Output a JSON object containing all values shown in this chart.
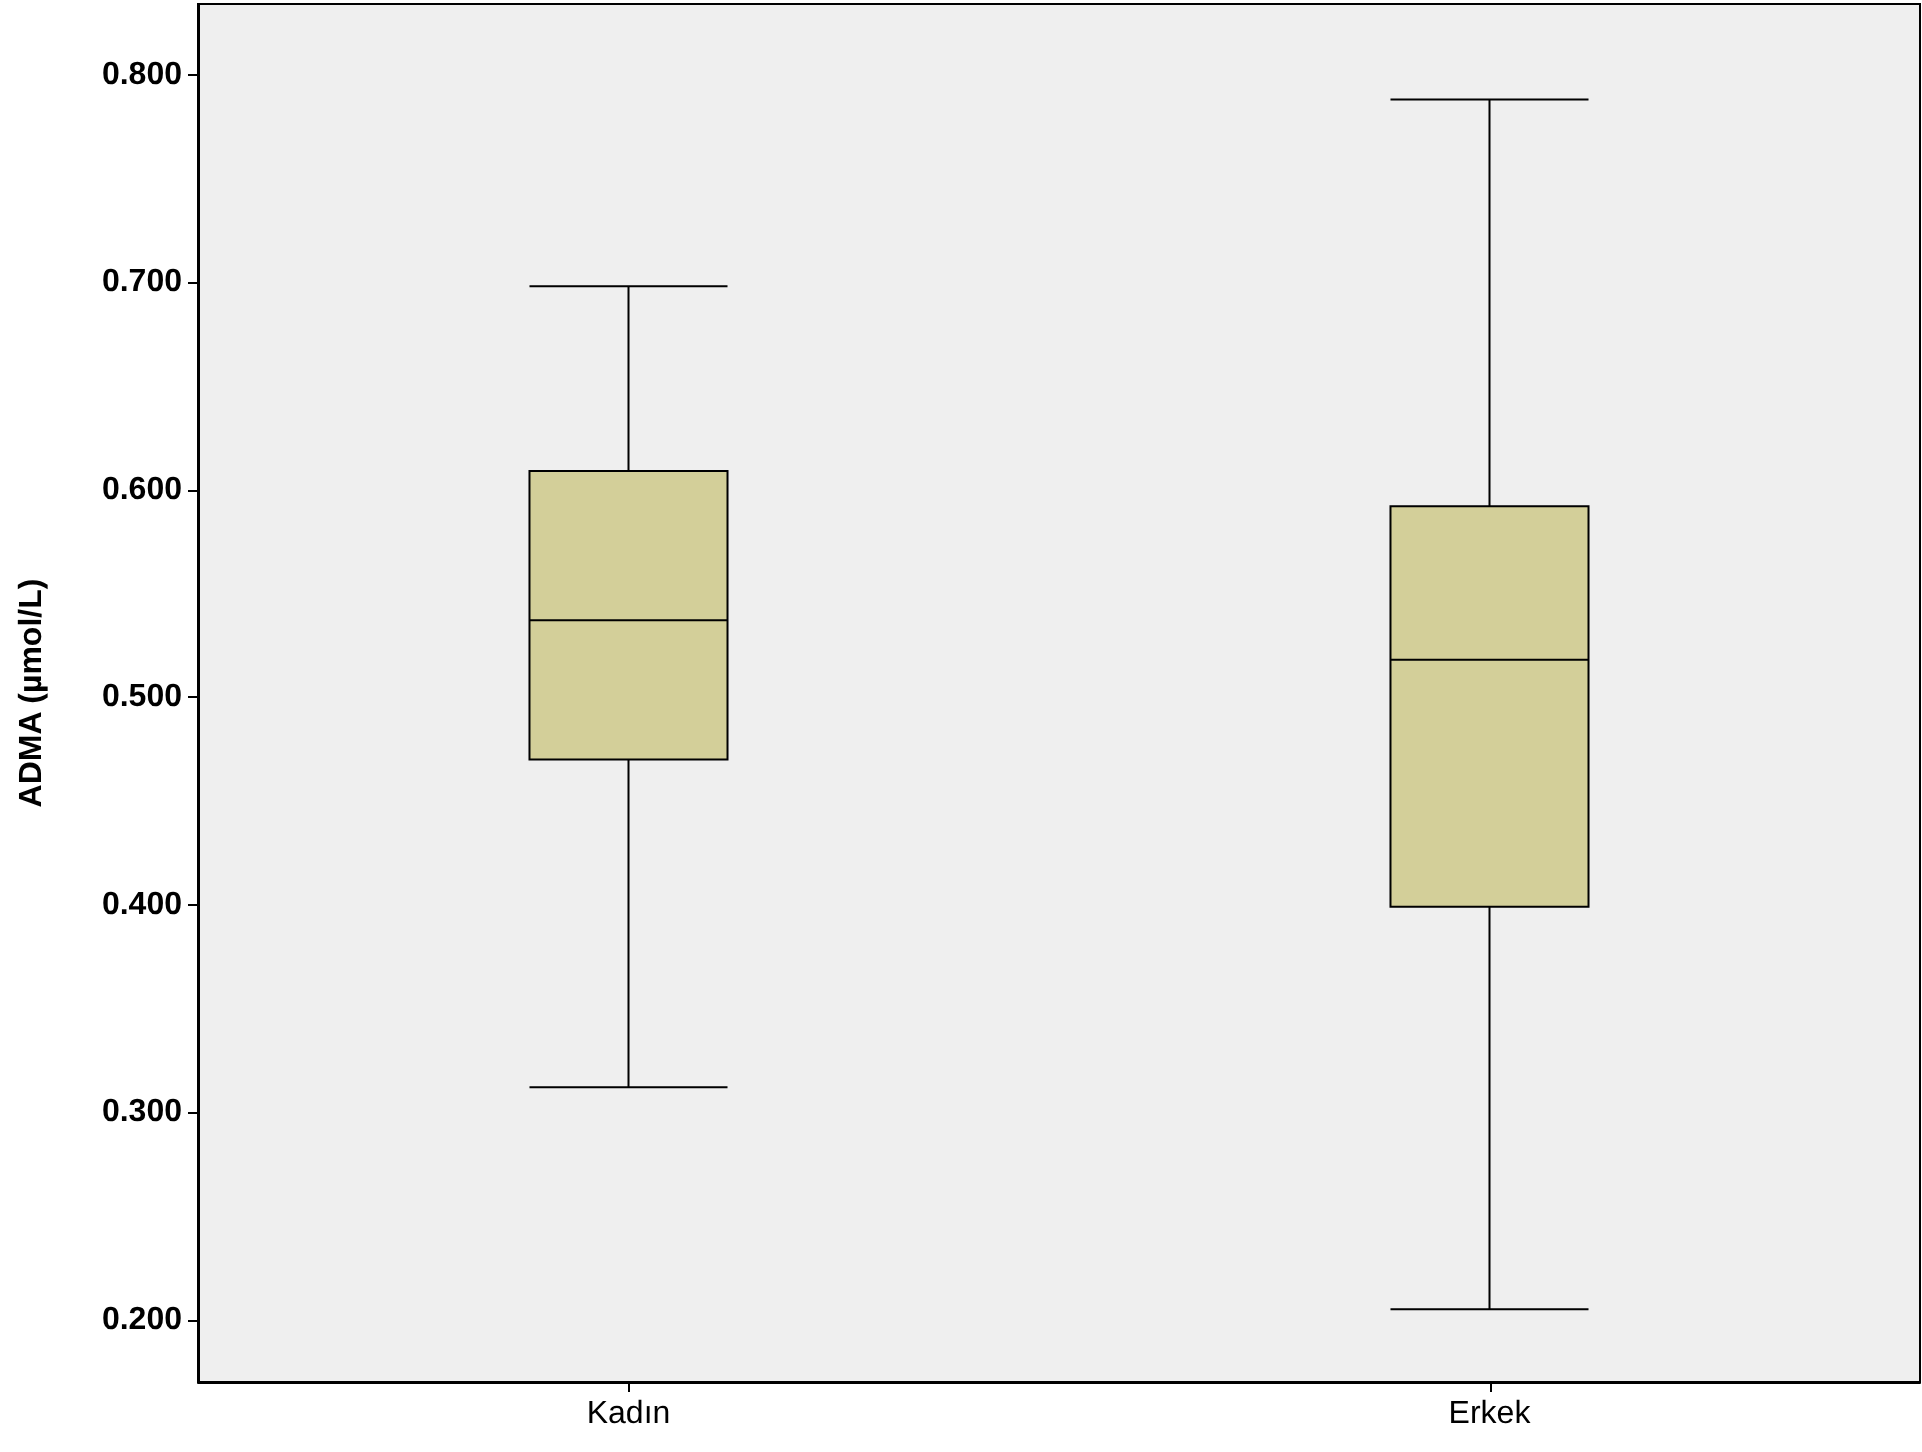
{
  "chart_data": {
    "type": "box",
    "ylabel": "ADMA (µmol/L)",
    "categories": [
      "Kadın",
      "Erkek"
    ],
    "boxes": [
      {
        "low": 0.312,
        "q1": 0.47,
        "median": 0.537,
        "q3": 0.609,
        "high": 0.698
      },
      {
        "low": 0.205,
        "q1": 0.399,
        "median": 0.518,
        "q3": 0.592,
        "high": 0.788
      }
    ],
    "color": "#d3cf99",
    "ylim": [
      0.17,
      0.834
    ],
    "yticks": [
      {
        "value": 0.2,
        "label": "0.200"
      },
      {
        "value": 0.3,
        "label": "0.300"
      },
      {
        "value": 0.4,
        "label": "0.400"
      },
      {
        "value": 0.5,
        "label": "0.500"
      },
      {
        "value": 0.6,
        "label": "0.600"
      },
      {
        "value": 0.7,
        "label": "0.700"
      },
      {
        "value": 0.8,
        "label": "0.800"
      }
    ],
    "grid": false
  }
}
